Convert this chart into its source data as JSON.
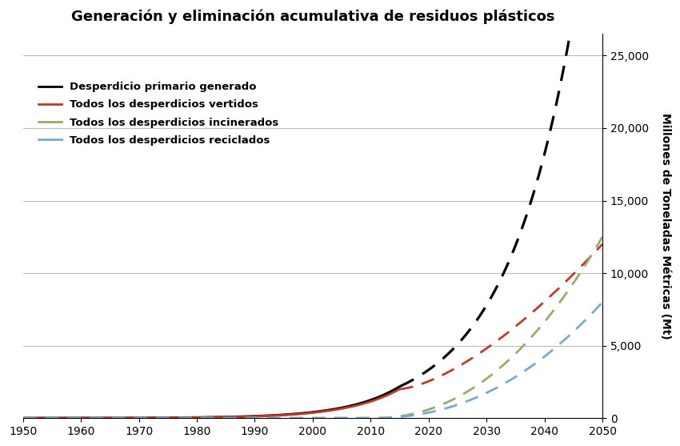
{
  "title": "Generación y eliminación acumulativa de residuos plásticos",
  "ylabel": "Millones de Toneladas Métricas (Mt)",
  "xlim": [
    1950,
    2050
  ],
  "ylim": [
    0,
    26500
  ],
  "yticks": [
    0,
    5000,
    10000,
    15000,
    20000,
    25000
  ],
  "xticks": [
    1950,
    1960,
    1970,
    1980,
    1990,
    2000,
    2010,
    2020,
    2030,
    2040,
    2050
  ],
  "legend_labels": [
    "Desperdicio primario generado",
    "Todos los desperdicios vertidos",
    "Todos los desperdicios incinerados",
    "Todos los desperdicios reciclados"
  ],
  "legend_colors": [
    "#000000",
    "#c0392b",
    "#9aaa6a",
    "#7aaad0"
  ],
  "bg_color": "#ffffff",
  "grid_color": "#bbbbbb",
  "split_black": 2015,
  "split_others": 2015,
  "val_black_2050": 26000,
  "val_red_2015": 1500,
  "val_red_2050": 12000,
  "val_inc_2050": 12500,
  "val_rec_2050": 8000
}
